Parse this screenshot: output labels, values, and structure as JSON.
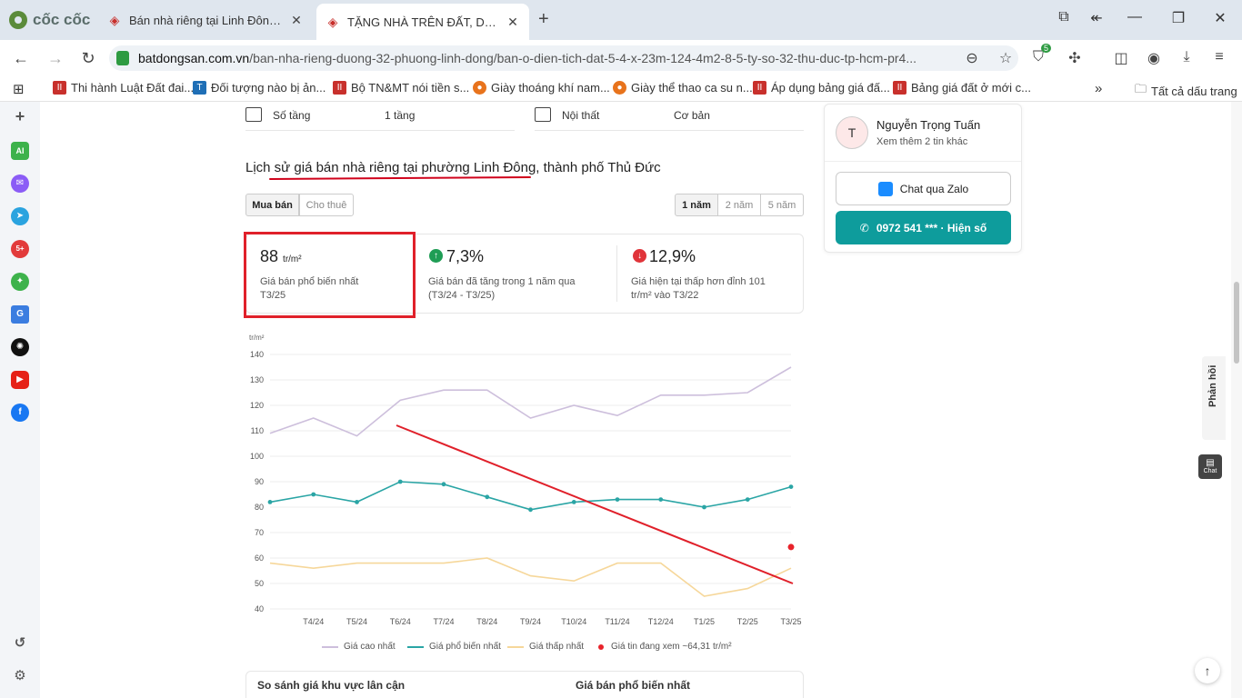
{
  "browser": {
    "brand": "cốc cốc",
    "tabs": [
      {
        "title": "Bán nhà riêng tại Linh Đông, 60m..."
      },
      {
        "title": "TẶNG NHÀ TRÊN ĐẤT, DT ĐẤ"
      }
    ],
    "url_host": "batdongsan.com.vn",
    "url_path": "/ban-nha-rieng-duong-32-phuong-linh-dong/ban-o-dien-tich-dat-5-4-x-23m-124-4m2-8-5-ty-so-32-thu-duc-tp-hcm-pr4...",
    "extension_badge": "5",
    "bookmarks": [
      "Thi hành Luật Đất đai...",
      "Đối tượng nào bị ản...",
      "Bộ TN&MT nói tiền s...",
      "Giày thoáng khí nam...",
      "Giày thể thao ca su n...",
      "Áp dụng bảng giá đấ...",
      "Bảng giá đất ở mới c..."
    ],
    "bookmarks_all": "Tất cả dấu trang"
  },
  "sidebar": {
    "ai_label": "AI",
    "badge": "5+"
  },
  "features": {
    "floors_label": "Số tầng",
    "floors_value": "1 tầng",
    "furniture_label": "Nội thất",
    "furniture_value": "Cơ bản"
  },
  "section": {
    "title_prefix": "Lịch sử ",
    "title_highlight": "giá bán nhà riêng tại phường Linh Đông,",
    "title_suffix": " thành phố Thủ Đức",
    "tab_buy": "Mua bán",
    "tab_rent": "Cho thuê",
    "range_1": "1 năm",
    "range_2": "2 năm",
    "range_5": "5 năm"
  },
  "stats": {
    "s1_value": "88",
    "s1_unit": "tr/m²",
    "s1_desc": "Giá bán phổ biến nhất T3/25",
    "s2_value": "7,3%",
    "s2_desc": "Giá bán đã tăng trong 1 năm qua (T3/24 - T3/25)",
    "s3_value": "12,9%",
    "s3_desc": "Giá hiện tại thấp hơn đỉnh 101 tr/m² vào T3/22"
  },
  "chart_data": {
    "type": "line",
    "ylabel": "tr/m²",
    "ylim": [
      40,
      140
    ],
    "yticks": [
      40,
      50,
      60,
      70,
      80,
      90,
      100,
      110,
      120,
      130,
      140
    ],
    "x": [
      "T3/24",
      "T4/24",
      "T5/24",
      "T6/24",
      "T7/24",
      "T8/24",
      "T9/24",
      "T10/24",
      "T11/24",
      "T12/24",
      "T1/25",
      "T2/25",
      "T3/25"
    ],
    "xtick_labels": [
      "T4/24",
      "T5/24",
      "T6/24",
      "T7/24",
      "T8/24",
      "T9/24",
      "T10/24",
      "T11/24",
      "T12/24",
      "T1/25",
      "T2/25",
      "T3/25"
    ],
    "series": [
      {
        "name": "Giá cao nhất",
        "color": "#cdbfdc",
        "values": [
          109,
          115,
          108,
          122,
          126,
          126,
          115,
          120,
          116,
          124,
          124,
          125,
          135
        ]
      },
      {
        "name": "Giá phổ biến nhất",
        "color": "#2aa5a5",
        "values": [
          82,
          85,
          82,
          90,
          89,
          84,
          79,
          82,
          83,
          83,
          80,
          83,
          88
        ]
      },
      {
        "name": "Giá thấp nhất",
        "color": "#f6d79a",
        "values": [
          58,
          56,
          58,
          58,
          58,
          60,
          53,
          51,
          58,
          58,
          45,
          48,
          56
        ]
      }
    ],
    "current_listing": {
      "name": "Giá tin đang xem ~64,31 tr/m²",
      "x": "T3/25",
      "value": 64.31,
      "color": "#e8232b"
    },
    "grid": true,
    "legend": "bottom"
  },
  "compare": {
    "left": "So sánh giá khu vực lân cận",
    "right": "Giá bán phổ biến nhất"
  },
  "seller": {
    "initial": "T",
    "name": "Nguyễn Trọng Tuấn",
    "more": "Xem thêm 2 tin khác",
    "zalo": "Chat qua Zalo",
    "phone": "0972 541 *** · Hiện số"
  },
  "feedback": "Phản hồi",
  "chat": "Chat"
}
